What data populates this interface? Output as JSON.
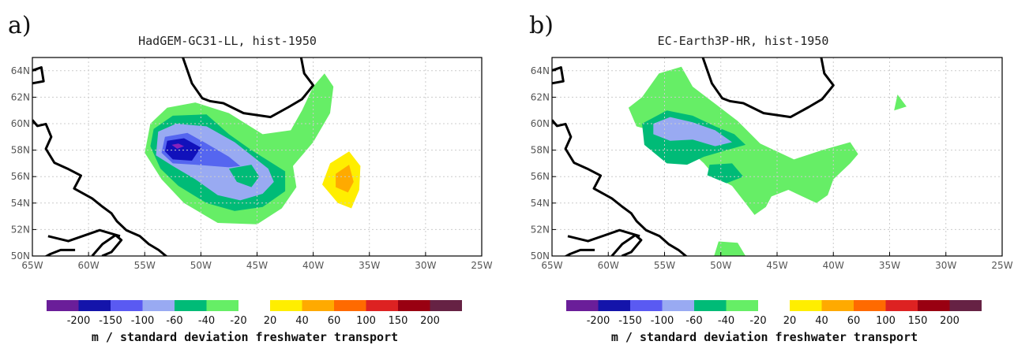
{
  "chart_data": [
    {
      "type": "contour-map",
      "panel_letter": "a)",
      "title": "HadGEM-GC31-LL, hist-1950",
      "x_ticks": [
        "65W",
        "60W",
        "55W",
        "50W",
        "45W",
        "40W",
        "35W",
        "30W",
        "25W"
      ],
      "y_ticks": [
        "50N",
        "52N",
        "54N",
        "56N",
        "58N",
        "60N",
        "62N",
        "64N"
      ],
      "xlim": [
        -65,
        -25
      ],
      "ylim": [
        50,
        65
      ],
      "grid": true,
      "features": [
        {
          "level": "-20",
          "color": "#66ee66",
          "lonlat": [
            [
              -54.5,
              60.0
            ],
            [
              -53.0,
              61.2
            ],
            [
              -50.5,
              61.6
            ],
            [
              -47.5,
              60.8
            ],
            [
              -44.5,
              59.2
            ],
            [
              -42.0,
              59.5
            ],
            [
              -41.0,
              61.0
            ],
            [
              -40.0,
              62.8
            ],
            [
              -39.0,
              63.8
            ],
            [
              -38.2,
              62.8
            ],
            [
              -38.5,
              60.8
            ],
            [
              -40.0,
              58.6
            ],
            [
              -41.8,
              56.8
            ],
            [
              -41.5,
              55.2
            ],
            [
              -42.8,
              53.6
            ],
            [
              -45.0,
              52.4
            ],
            [
              -48.5,
              52.5
            ],
            [
              -51.5,
              54.0
            ],
            [
              -53.5,
              55.8
            ],
            [
              -55.0,
              57.8
            ]
          ]
        },
        {
          "level": "-40",
          "color": "#00bb77",
          "lonlat": [
            [
              -54.2,
              59.6
            ],
            [
              -52.5,
              60.6
            ],
            [
              -49.5,
              60.7
            ],
            [
              -47.5,
              59.2
            ],
            [
              -45.5,
              58.0
            ],
            [
              -44.0,
              57.2
            ],
            [
              -42.5,
              56.4
            ],
            [
              -42.5,
              54.9
            ],
            [
              -44.5,
              53.7
            ],
            [
              -47.0,
              53.4
            ],
            [
              -49.5,
              54.0
            ],
            [
              -52.0,
              55.3
            ],
            [
              -53.6,
              56.6
            ],
            [
              -54.5,
              58.3
            ]
          ]
        },
        {
          "level": "-60",
          "color": "#99aaf2",
          "lonlat": [
            [
              -53.8,
              59.4
            ],
            [
              -52.2,
              60.0
            ],
            [
              -49.5,
              59.8
            ],
            [
              -47.0,
              58.6
            ],
            [
              -45.5,
              57.6
            ],
            [
              -44.0,
              56.6
            ],
            [
              -43.5,
              55.6
            ],
            [
              -44.5,
              54.7
            ],
            [
              -46.5,
              54.2
            ],
            [
              -48.5,
              54.6
            ],
            [
              -50.5,
              55.8
            ],
            [
              -52.5,
              56.8
            ],
            [
              -54.0,
              57.6
            ]
          ]
        },
        {
          "level": "-100",
          "color": "#5566f0",
          "lonlat": [
            [
              -53.2,
              59.0
            ],
            [
              -51.2,
              59.3
            ],
            [
              -49.5,
              58.5
            ],
            [
              -47.5,
              57.5
            ],
            [
              -46.5,
              56.8
            ],
            [
              -47.5,
              56.7
            ],
            [
              -50.5,
              56.9
            ],
            [
              -52.5,
              57.0
            ],
            [
              -53.5,
              57.8
            ]
          ]
        },
        {
          "level": "-150",
          "color": "#1111bb",
          "lonlat": [
            [
              -53.0,
              58.7
            ],
            [
              -51.5,
              58.9
            ],
            [
              -50.0,
              58.2
            ],
            [
              -50.8,
              57.2
            ],
            [
              -52.5,
              57.3
            ],
            [
              -53.2,
              57.9
            ]
          ]
        },
        {
          "level": "-200",
          "color": "#8822bb",
          "lonlat": [
            [
              -52.6,
              58.4
            ],
            [
              -52.0,
              58.5
            ],
            [
              -51.5,
              58.3
            ],
            [
              -52.1,
              58.1
            ]
          ]
        },
        {
          "level": "-40",
          "color": "#00bb77",
          "lonlat": [
            [
              -47.5,
              56.6
            ],
            [
              -45.5,
              56.9
            ],
            [
              -44.8,
              56.0
            ],
            [
              -45.5,
              55.2
            ],
            [
              -46.8,
              55.6
            ]
          ]
        },
        {
          "level": "20",
          "color": "#ffee00",
          "lonlat": [
            [
              -38.5,
              57.0
            ],
            [
              -36.8,
              57.9
            ],
            [
              -35.8,
              56.8
            ],
            [
              -35.9,
              55.0
            ],
            [
              -36.6,
              53.6
            ],
            [
              -37.8,
              54.0
            ],
            [
              -39.2,
              55.4
            ]
          ]
        },
        {
          "level": "40",
          "color": "#ffaa00",
          "lonlat": [
            [
              -38.0,
              56.2
            ],
            [
              -36.8,
              56.9
            ],
            [
              -36.4,
              55.6
            ],
            [
              -36.9,
              54.8
            ],
            [
              -38.0,
              55.2
            ]
          ]
        }
      ]
    },
    {
      "type": "contour-map",
      "panel_letter": "b)",
      "title": "EC-Earth3P-HR, hist-1950",
      "x_ticks": [
        "65W",
        "60W",
        "55W",
        "50W",
        "45W",
        "40W",
        "35W",
        "30W",
        "25W"
      ],
      "y_ticks": [
        "50N",
        "52N",
        "54N",
        "56N",
        "58N",
        "60N",
        "62N",
        "64N"
      ],
      "xlim": [
        -65,
        -25
      ],
      "ylim": [
        50,
        65
      ],
      "grid": true,
      "features": [
        {
          "level": "-20",
          "color": "#66ee66",
          "lonlat": [
            [
              -57.0,
              62.0
            ],
            [
              -55.5,
              63.8
            ],
            [
              -53.5,
              64.3
            ],
            [
              -52.5,
              62.8
            ],
            [
              -50.5,
              61.5
            ],
            [
              -48.5,
              60.2
            ],
            [
              -46.5,
              58.5
            ],
            [
              -43.5,
              57.3
            ],
            [
              -41.0,
              58.0
            ],
            [
              -38.5,
              58.6
            ],
            [
              -37.8,
              57.7
            ],
            [
              -38.5,
              57.0
            ],
            [
              -40.0,
              55.8
            ],
            [
              -40.5,
              54.6
            ],
            [
              -41.5,
              54.0
            ],
            [
              -44.0,
              55.0
            ],
            [
              -45.5,
              54.5
            ],
            [
              -46.0,
              53.7
            ],
            [
              -47.0,
              53.1
            ],
            [
              -48.0,
              54.2
            ],
            [
              -49.0,
              55.3
            ],
            [
              -50.5,
              56.0
            ],
            [
              -51.5,
              57.0
            ],
            [
              -53.0,
              58.2
            ],
            [
              -55.0,
              59.2
            ],
            [
              -57.5,
              59.8
            ],
            [
              -58.2,
              61.2
            ]
          ]
        },
        {
          "level": "-20",
          "color": "#66ee66",
          "lonlat": [
            [
              -50.2,
              51.1
            ],
            [
              -48.5,
              51.0
            ],
            [
              -47.8,
              50.0
            ],
            [
              -50.6,
              50.0
            ]
          ]
        },
        {
          "level": "-20",
          "color": "#66ee66",
          "lonlat": [
            [
              -34.6,
              61.0
            ],
            [
              -34.3,
              62.2
            ],
            [
              -33.5,
              61.3
            ]
          ]
        },
        {
          "level": "-40",
          "color": "#00bb77",
          "lonlat": [
            [
              -57.0,
              60.0
            ],
            [
              -54.8,
              61.0
            ],
            [
              -52.5,
              60.6
            ],
            [
              -50.5,
              59.8
            ],
            [
              -48.8,
              59.2
            ],
            [
              -47.8,
              58.4
            ],
            [
              -49.5,
              58.0
            ],
            [
              -51.5,
              57.5
            ],
            [
              -53.0,
              56.9
            ],
            [
              -54.8,
              57.0
            ],
            [
              -56.8,
              58.4
            ]
          ]
        },
        {
          "level": "-40",
          "color": "#00bb77",
          "lonlat": [
            [
              -51.0,
              56.9
            ],
            [
              -49.0,
              57.0
            ],
            [
              -48.0,
              56.0
            ],
            [
              -49.5,
              55.5
            ],
            [
              -51.2,
              56.1
            ]
          ]
        },
        {
          "level": "-60",
          "color": "#99aaf2",
          "lonlat": [
            [
              -56.0,
              60.0
            ],
            [
              -54.5,
              60.5
            ],
            [
              -52.5,
              60.1
            ],
            [
              -50.5,
              59.5
            ],
            [
              -49.0,
              58.6
            ],
            [
              -50.5,
              58.3
            ],
            [
              -52.5,
              58.8
            ],
            [
              -54.5,
              58.7
            ],
            [
              -56.0,
              59.2
            ]
          ]
        }
      ]
    }
  ],
  "colorbar": {
    "negative": [
      {
        "color": "#6a1e99"
      },
      {
        "color": "#1414aa"
      },
      {
        "color": "#5a5af2"
      },
      {
        "color": "#99aaf2"
      },
      {
        "color": "#00bb77"
      },
      {
        "color": "#66ee66"
      }
    ],
    "positive": [
      {
        "color": "#ffee00"
      },
      {
        "color": "#ffaa00"
      },
      {
        "color": "#ff6a00"
      },
      {
        "color": "#dd2222"
      },
      {
        "color": "#990011"
      },
      {
        "color": "#662244"
      }
    ],
    "labels": [
      "-200",
      "-150",
      "-100",
      "-60",
      "-40",
      "-20",
      "20",
      "40",
      "60",
      "100",
      "150",
      "200"
    ],
    "units_label": "m / standard deviation freshwater transport"
  }
}
